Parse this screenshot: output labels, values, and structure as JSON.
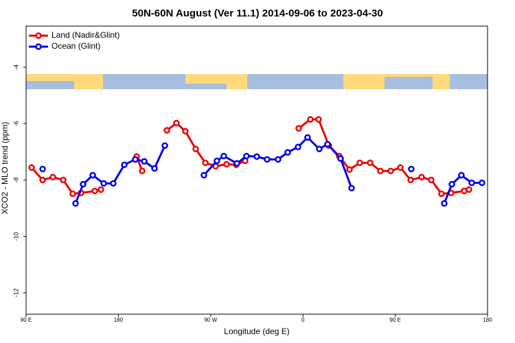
{
  "chart_data": {
    "type": "line",
    "title": "50N-60N August (Ver 11.1)   2014-09-06 to 2023-04-30",
    "xlabel": "Longitude (deg E)",
    "ylabel": "XCO2 - MLO trend (ppm)",
    "xlim": [
      90,
      540
    ],
    "xticks": [
      {
        "value": 90,
        "label": "90 E"
      },
      {
        "value": 180,
        "label": "180"
      },
      {
        "value": 270,
        "label": "90 W"
      },
      {
        "value": 360,
        "label": "0"
      },
      {
        "value": 450,
        "label": "90 E"
      },
      {
        "value": 540,
        "label": "180"
      }
    ],
    "ylim": [
      -12.76,
      -2.54
    ],
    "yticks": [
      -4,
      -6,
      -8,
      -10,
      -12
    ],
    "legend": "top-left",
    "series": [
      {
        "name": "Land (Nadir&Glint)",
        "color": "#ee0000",
        "x": [
          95.4,
          106.1,
          116.1,
          126.2,
          135.5,
          143.6,
          157.0,
          163.0,
          173,
          197.8,
          203.2,
          223,
          227.3,
          236.6,
          245.3,
          255.4,
          264.8,
          274.8,
          285.5,
          294.9,
          303.6,
          340,
          355.8,
          367.2,
          375.2,
          385.3,
          395.3,
          405.4,
          415.4,
          425.5,
          435.5,
          445.6,
          455.0,
          465.0,
          475.7,
          485.1,
          495.1,
          504.5,
          517.2,
          521.9
        ],
        "values": [
          -7.56,
          -8.0,
          -7.9,
          -8.0,
          -8.49,
          -8.46,
          -8.39,
          -8.34,
          null,
          -7.17,
          -7.68,
          null,
          -6.24,
          -5.98,
          -6.27,
          -6.9,
          -7.39,
          -7.51,
          -7.44,
          -7.46,
          -7.32,
          null,
          -6.17,
          -5.85,
          -5.85,
          -6.78,
          -7.15,
          -7.63,
          -7.39,
          -7.39,
          -7.68,
          -7.68,
          -7.56,
          -8.0,
          -7.9,
          -8.0,
          -8.49,
          -8.46,
          -8.39,
          -8.34
        ]
      },
      {
        "name": "Ocean (Glint)",
        "color": "#0000ee",
        "x": [
          106.1,
          115,
          138.2,
          145.6,
          155.0,
          165.7,
          175.0,
          185.8,
          196.5,
          205.2,
          215.2,
          225.3,
          245,
          263.4,
          276.1,
          282.8,
          295.6,
          304.9,
          315.0,
          325.0,
          335.7,
          345.1,
          355.2,
          364.5,
          375.9,
          384.0,
          396.7,
          407.4,
          440,
          465.6,
          490,
          497.8,
          505.2,
          514.5,
          524.6,
          534.6
        ],
        "values": [
          -7.61,
          null,
          -8.83,
          -8.15,
          -7.83,
          -8.12,
          -8.12,
          -7.46,
          -7.27,
          -7.34,
          -7.59,
          -6.78,
          null,
          -7.83,
          -7.32,
          -7.15,
          -7.41,
          -7.15,
          -7.17,
          -7.27,
          -7.27,
          -7.02,
          -6.83,
          -6.49,
          -6.9,
          -6.73,
          -7.24,
          -8.29,
          null,
          -7.61,
          null,
          -8.83,
          -8.15,
          -7.83,
          -8.1,
          -8.1
        ]
      }
    ]
  }
}
